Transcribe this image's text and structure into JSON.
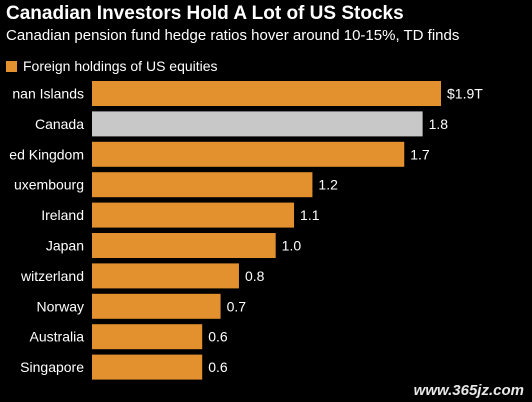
{
  "header": {
    "title": "Canadian Investors Hold A Lot of US Stocks",
    "subtitle": "Canadian pension fund hedge ratios hover around 10-15%, TD finds"
  },
  "legend": {
    "label": "Foreign holdings of US equities",
    "color": "#e3902f"
  },
  "colors": {
    "bar": "#e3902f",
    "highlight": "#c8c8c8",
    "text": "#ffffff",
    "background": "#000000"
  },
  "watermark": "www.365jz.com",
  "chart_data": {
    "type": "bar",
    "orientation": "horizontal",
    "title": "Canadian Investors Hold A Lot of US Stocks",
    "subtitle": "Canadian pension fund hedge ratios hover around 10-15%, TD finds",
    "categories": [
      "nan Islands",
      "Canada",
      "ed Kingdom",
      "uxembourg",
      "Ireland",
      "Japan",
      "witzerland",
      "Norway",
      "Australia",
      "Singapore"
    ],
    "values": [
      1.9,
      1.8,
      1.7,
      1.2,
      1.1,
      1.0,
      0.8,
      0.7,
      0.6,
      0.6
    ],
    "value_labels": [
      "$1.9T",
      "1.8",
      "1.7",
      "1.2",
      "1.1",
      "1.0",
      "0.8",
      "0.7",
      "0.6",
      "0.6"
    ],
    "highlight_category": "Canada",
    "series": [
      {
        "name": "Foreign holdings of US equities",
        "values": [
          1.9,
          1.8,
          1.7,
          1.2,
          1.1,
          1.0,
          0.8,
          0.7,
          0.6,
          0.6
        ]
      }
    ],
    "xlim": [
      0,
      1.9
    ],
    "grid": false,
    "legend_position": "top-left"
  }
}
